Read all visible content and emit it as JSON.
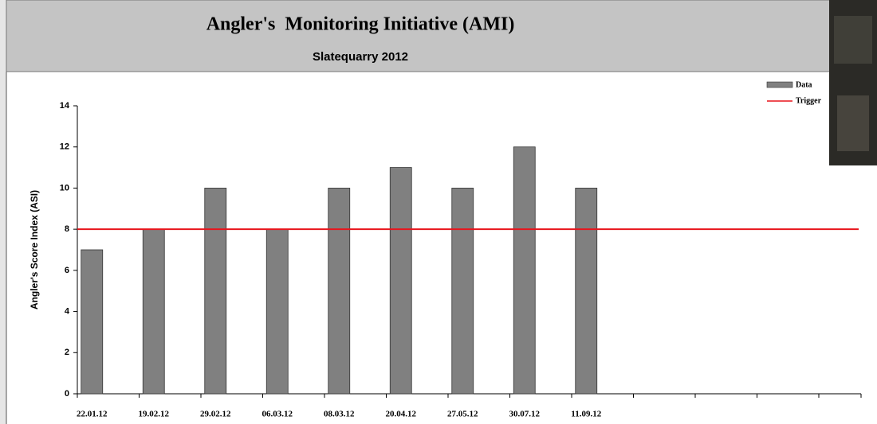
{
  "chart_data": {
    "type": "bar",
    "title": "Angler's  Monitoring Initiative (AMI)",
    "subtitle": "Slatequarry 2012",
    "y_label": "Angler's Score Index (ASI)",
    "categories": [
      "22.01.12",
      "19.02.12",
      "29.02.12",
      "06.03.12",
      "08.03.12",
      "20.04.12",
      "27.05.12",
      "30.07.12",
      "11.09.12",
      null,
      null,
      null,
      null
    ],
    "series": [
      {
        "name": "Data",
        "color": "#808080",
        "values": [
          7,
          8,
          10,
          8,
          10,
          11,
          10,
          12,
          10,
          null,
          null,
          null,
          null
        ]
      }
    ],
    "trigger": {
      "name": "Trigger",
      "color": "#e8141c",
      "value": 8
    },
    "ylim": [
      0,
      14
    ],
    "yticks": [
      0,
      2,
      4,
      6,
      8,
      10,
      12,
      14
    ],
    "legend": "top-right"
  }
}
